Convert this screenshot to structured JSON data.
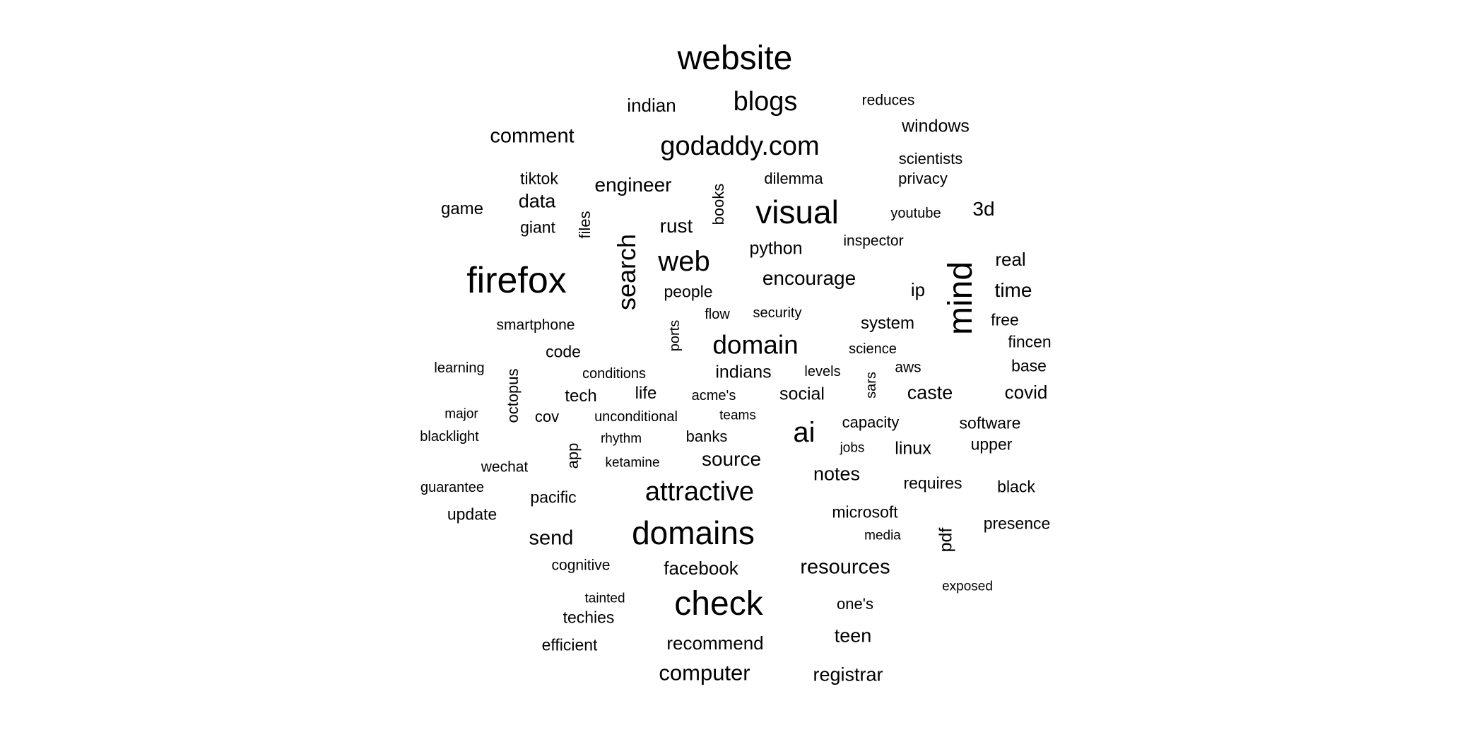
{
  "words": [
    {
      "text": "website"
    },
    {
      "text": "blogs"
    },
    {
      "text": "indian"
    },
    {
      "text": "reduces"
    },
    {
      "text": "windows"
    },
    {
      "text": "comment"
    },
    {
      "text": "godaddy.com"
    },
    {
      "text": "scientists"
    },
    {
      "text": "tiktok"
    },
    {
      "text": "engineer"
    },
    {
      "text": "dilemma"
    },
    {
      "text": "privacy"
    },
    {
      "text": "data"
    },
    {
      "text": "game"
    },
    {
      "text": "books",
      "rotated": true
    },
    {
      "text": "visual"
    },
    {
      "text": "youtube"
    },
    {
      "text": "3d"
    },
    {
      "text": "giant"
    },
    {
      "text": "files",
      "rotated": true
    },
    {
      "text": "rust"
    },
    {
      "text": "search",
      "rotated": true
    },
    {
      "text": "inspector"
    },
    {
      "text": "python"
    },
    {
      "text": "web"
    },
    {
      "text": "real"
    },
    {
      "text": "firefox"
    },
    {
      "text": "mind",
      "rotated": true
    },
    {
      "text": "encourage"
    },
    {
      "text": "people"
    },
    {
      "text": "ip"
    },
    {
      "text": "time"
    },
    {
      "text": "flow"
    },
    {
      "text": "security"
    },
    {
      "text": "free"
    },
    {
      "text": "smartphone"
    },
    {
      "text": "system"
    },
    {
      "text": "ports",
      "rotated": true
    },
    {
      "text": "domain"
    },
    {
      "text": "fincen"
    },
    {
      "text": "code"
    },
    {
      "text": "science"
    },
    {
      "text": "learning"
    },
    {
      "text": "conditions"
    },
    {
      "text": "indians"
    },
    {
      "text": "levels"
    },
    {
      "text": "aws"
    },
    {
      "text": "base"
    },
    {
      "text": "octopus",
      "rotated": true
    },
    {
      "text": "sars",
      "rotated": true
    },
    {
      "text": "tech"
    },
    {
      "text": "life"
    },
    {
      "text": "acme's"
    },
    {
      "text": "social"
    },
    {
      "text": "caste"
    },
    {
      "text": "covid"
    },
    {
      "text": "major"
    },
    {
      "text": "cov"
    },
    {
      "text": "unconditional"
    },
    {
      "text": "teams"
    },
    {
      "text": "capacity"
    },
    {
      "text": "software"
    },
    {
      "text": "blacklight"
    },
    {
      "text": "ai"
    },
    {
      "text": "rhythm"
    },
    {
      "text": "banks"
    },
    {
      "text": "jobs"
    },
    {
      "text": "linux"
    },
    {
      "text": "upper"
    },
    {
      "text": "app",
      "rotated": true
    },
    {
      "text": "ketamine"
    },
    {
      "text": "wechat"
    },
    {
      "text": "source"
    },
    {
      "text": "notes"
    },
    {
      "text": "requires"
    },
    {
      "text": "guarantee"
    },
    {
      "text": "black"
    },
    {
      "text": "attractive"
    },
    {
      "text": "pacific"
    },
    {
      "text": "update"
    },
    {
      "text": "microsoft"
    },
    {
      "text": "presence"
    },
    {
      "text": "domains"
    },
    {
      "text": "media"
    },
    {
      "text": "pdf",
      "rotated": true
    },
    {
      "text": "send"
    },
    {
      "text": "cognitive"
    },
    {
      "text": "facebook"
    },
    {
      "text": "resources"
    },
    {
      "text": "exposed"
    },
    {
      "text": "tainted"
    },
    {
      "text": "check"
    },
    {
      "text": "one's"
    },
    {
      "text": "techies"
    },
    {
      "text": "teen"
    },
    {
      "text": "recommend"
    },
    {
      "text": "efficient"
    },
    {
      "text": "computer"
    },
    {
      "text": "registrar"
    }
  ]
}
